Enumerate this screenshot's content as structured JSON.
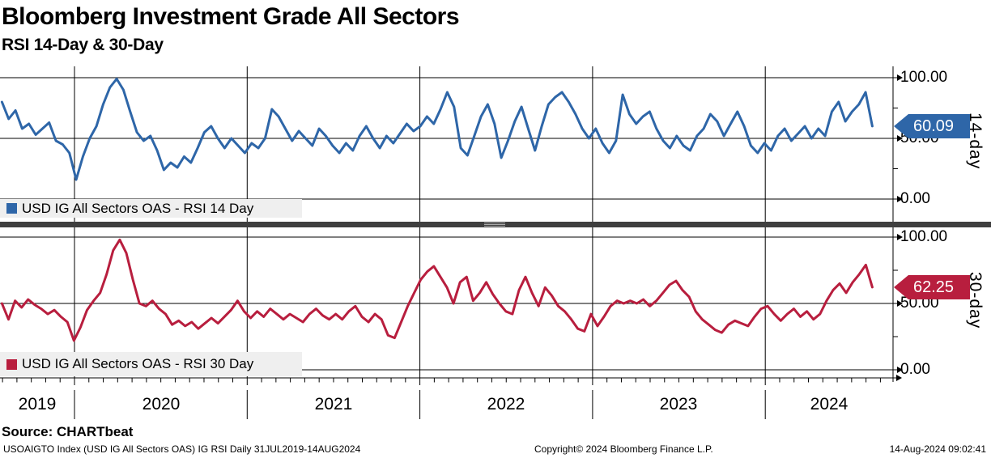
{
  "header": {
    "title": "Bloomberg Investment Grade All Sectors",
    "subtitle": "RSI 14-Day & 30-Day"
  },
  "panels": [
    {
      "legend": "USD IG All Sectors OAS - RSI 14 Day",
      "axis_label": "14-day",
      "last_label": "60.09",
      "color": "#2e66a8",
      "badge_color": "#2e66a8",
      "yticks": [
        "100.00",
        "50.00",
        "0.00"
      ]
    },
    {
      "legend": "USD IG All Sectors OAS - RSI 30 Day",
      "axis_label": "30-day",
      "last_label": "62.25",
      "color": "#b81e3e",
      "badge_color": "#b81e3e",
      "yticks": [
        "100.00",
        "50.00",
        "0.00"
      ]
    }
  ],
  "x_axis": {
    "years": [
      "2019",
      "2020",
      "2021",
      "2022",
      "2023",
      "2024"
    ]
  },
  "footer": {
    "source": "Source: CHARTbeat",
    "ticker_info": "USOAIGTO Index (USD IG All Sectors OAS) IG RSI  Daily 31JUL2019-14AUG2024",
    "copyright": "Copyright© 2024 Bloomberg Finance L.P.",
    "timestamp": "14-Aug-2024 09:02:41"
  },
  "chart_data": {
    "type": "line",
    "title": "Bloomberg Investment Grade All Sectors — RSI 14-Day & 30-Day",
    "x_unit": "decimal year, values evenly spaced 31JUL2019-14AUG2024",
    "x_range_years": [
      2019.58,
      2024.62
    ],
    "x_tick_years": [
      2019,
      2020,
      2021,
      2022,
      2023,
      2024
    ],
    "grid": true,
    "legend_position": "bottom-left of each panel",
    "panels": [
      {
        "name": "14-day",
        "series_name": "USD IG All Sectors OAS - RSI 14 Day",
        "color": "#2e66a8",
        "ylim": [
          0,
          100
        ],
        "yticks": [
          0,
          50,
          100
        ],
        "last_value": 60.09,
        "values": [
          80,
          66,
          73,
          58,
          62,
          53,
          58,
          63,
          48,
          45,
          38,
          16,
          35,
          50,
          60,
          78,
          92,
          99,
          90,
          72,
          55,
          48,
          52,
          40,
          24,
          30,
          26,
          35,
          30,
          42,
          55,
          60,
          50,
          42,
          50,
          44,
          38,
          46,
          42,
          50,
          74,
          68,
          58,
          48,
          56,
          50,
          44,
          58,
          52,
          44,
          38,
          46,
          40,
          52,
          60,
          50,
          42,
          52,
          46,
          54,
          62,
          56,
          60,
          68,
          62,
          74,
          88,
          76,
          42,
          36,
          52,
          68,
          78,
          62,
          34,
          48,
          64,
          76,
          58,
          40,
          60,
          78,
          84,
          88,
          80,
          70,
          58,
          50,
          58,
          46,
          38,
          48,
          86,
          70,
          62,
          68,
          72,
          58,
          48,
          42,
          52,
          44,
          40,
          52,
          58,
          70,
          64,
          52,
          62,
          72,
          60,
          44,
          38,
          46,
          40,
          52,
          58,
          48,
          54,
          60,
          50,
          58,
          52,
          72,
          80,
          64,
          72,
          78,
          88,
          60.09
        ]
      },
      {
        "name": "30-day",
        "series_name": "USD IG All Sectors OAS - RSI 30 Day",
        "color": "#b81e3e",
        "ylim": [
          0,
          100
        ],
        "yticks": [
          0,
          50,
          100
        ],
        "last_value": 62.25,
        "values": [
          50,
          38,
          52,
          47,
          53,
          49,
          46,
          42,
          45,
          40,
          36,
          22,
          32,
          45,
          52,
          58,
          72,
          90,
          98,
          88,
          68,
          50,
          48,
          52,
          46,
          42,
          34,
          37,
          33,
          36,
          31,
          35,
          39,
          35,
          40,
          45,
          52,
          44,
          39,
          44,
          40,
          46,
          42,
          38,
          42,
          39,
          36,
          42,
          46,
          41,
          38,
          42,
          38,
          44,
          48,
          40,
          36,
          42,
          38,
          26,
          24,
          36,
          48,
          58,
          68,
          74,
          78,
          70,
          62,
          50,
          66,
          70,
          52,
          58,
          66,
          57,
          50,
          44,
          42,
          60,
          70,
          58,
          48,
          62,
          56,
          48,
          44,
          38,
          31,
          29,
          42,
          33,
          40,
          48,
          52,
          50,
          52,
          50,
          53,
          48,
          52,
          58,
          64,
          67,
          60,
          55,
          44,
          38,
          34,
          30,
          28,
          34,
          37,
          35,
          33,
          40,
          46,
          48,
          42,
          37,
          42,
          46,
          40,
          44,
          38,
          42,
          52,
          60,
          65,
          58,
          66,
          72,
          79,
          62.25
        ]
      }
    ]
  }
}
